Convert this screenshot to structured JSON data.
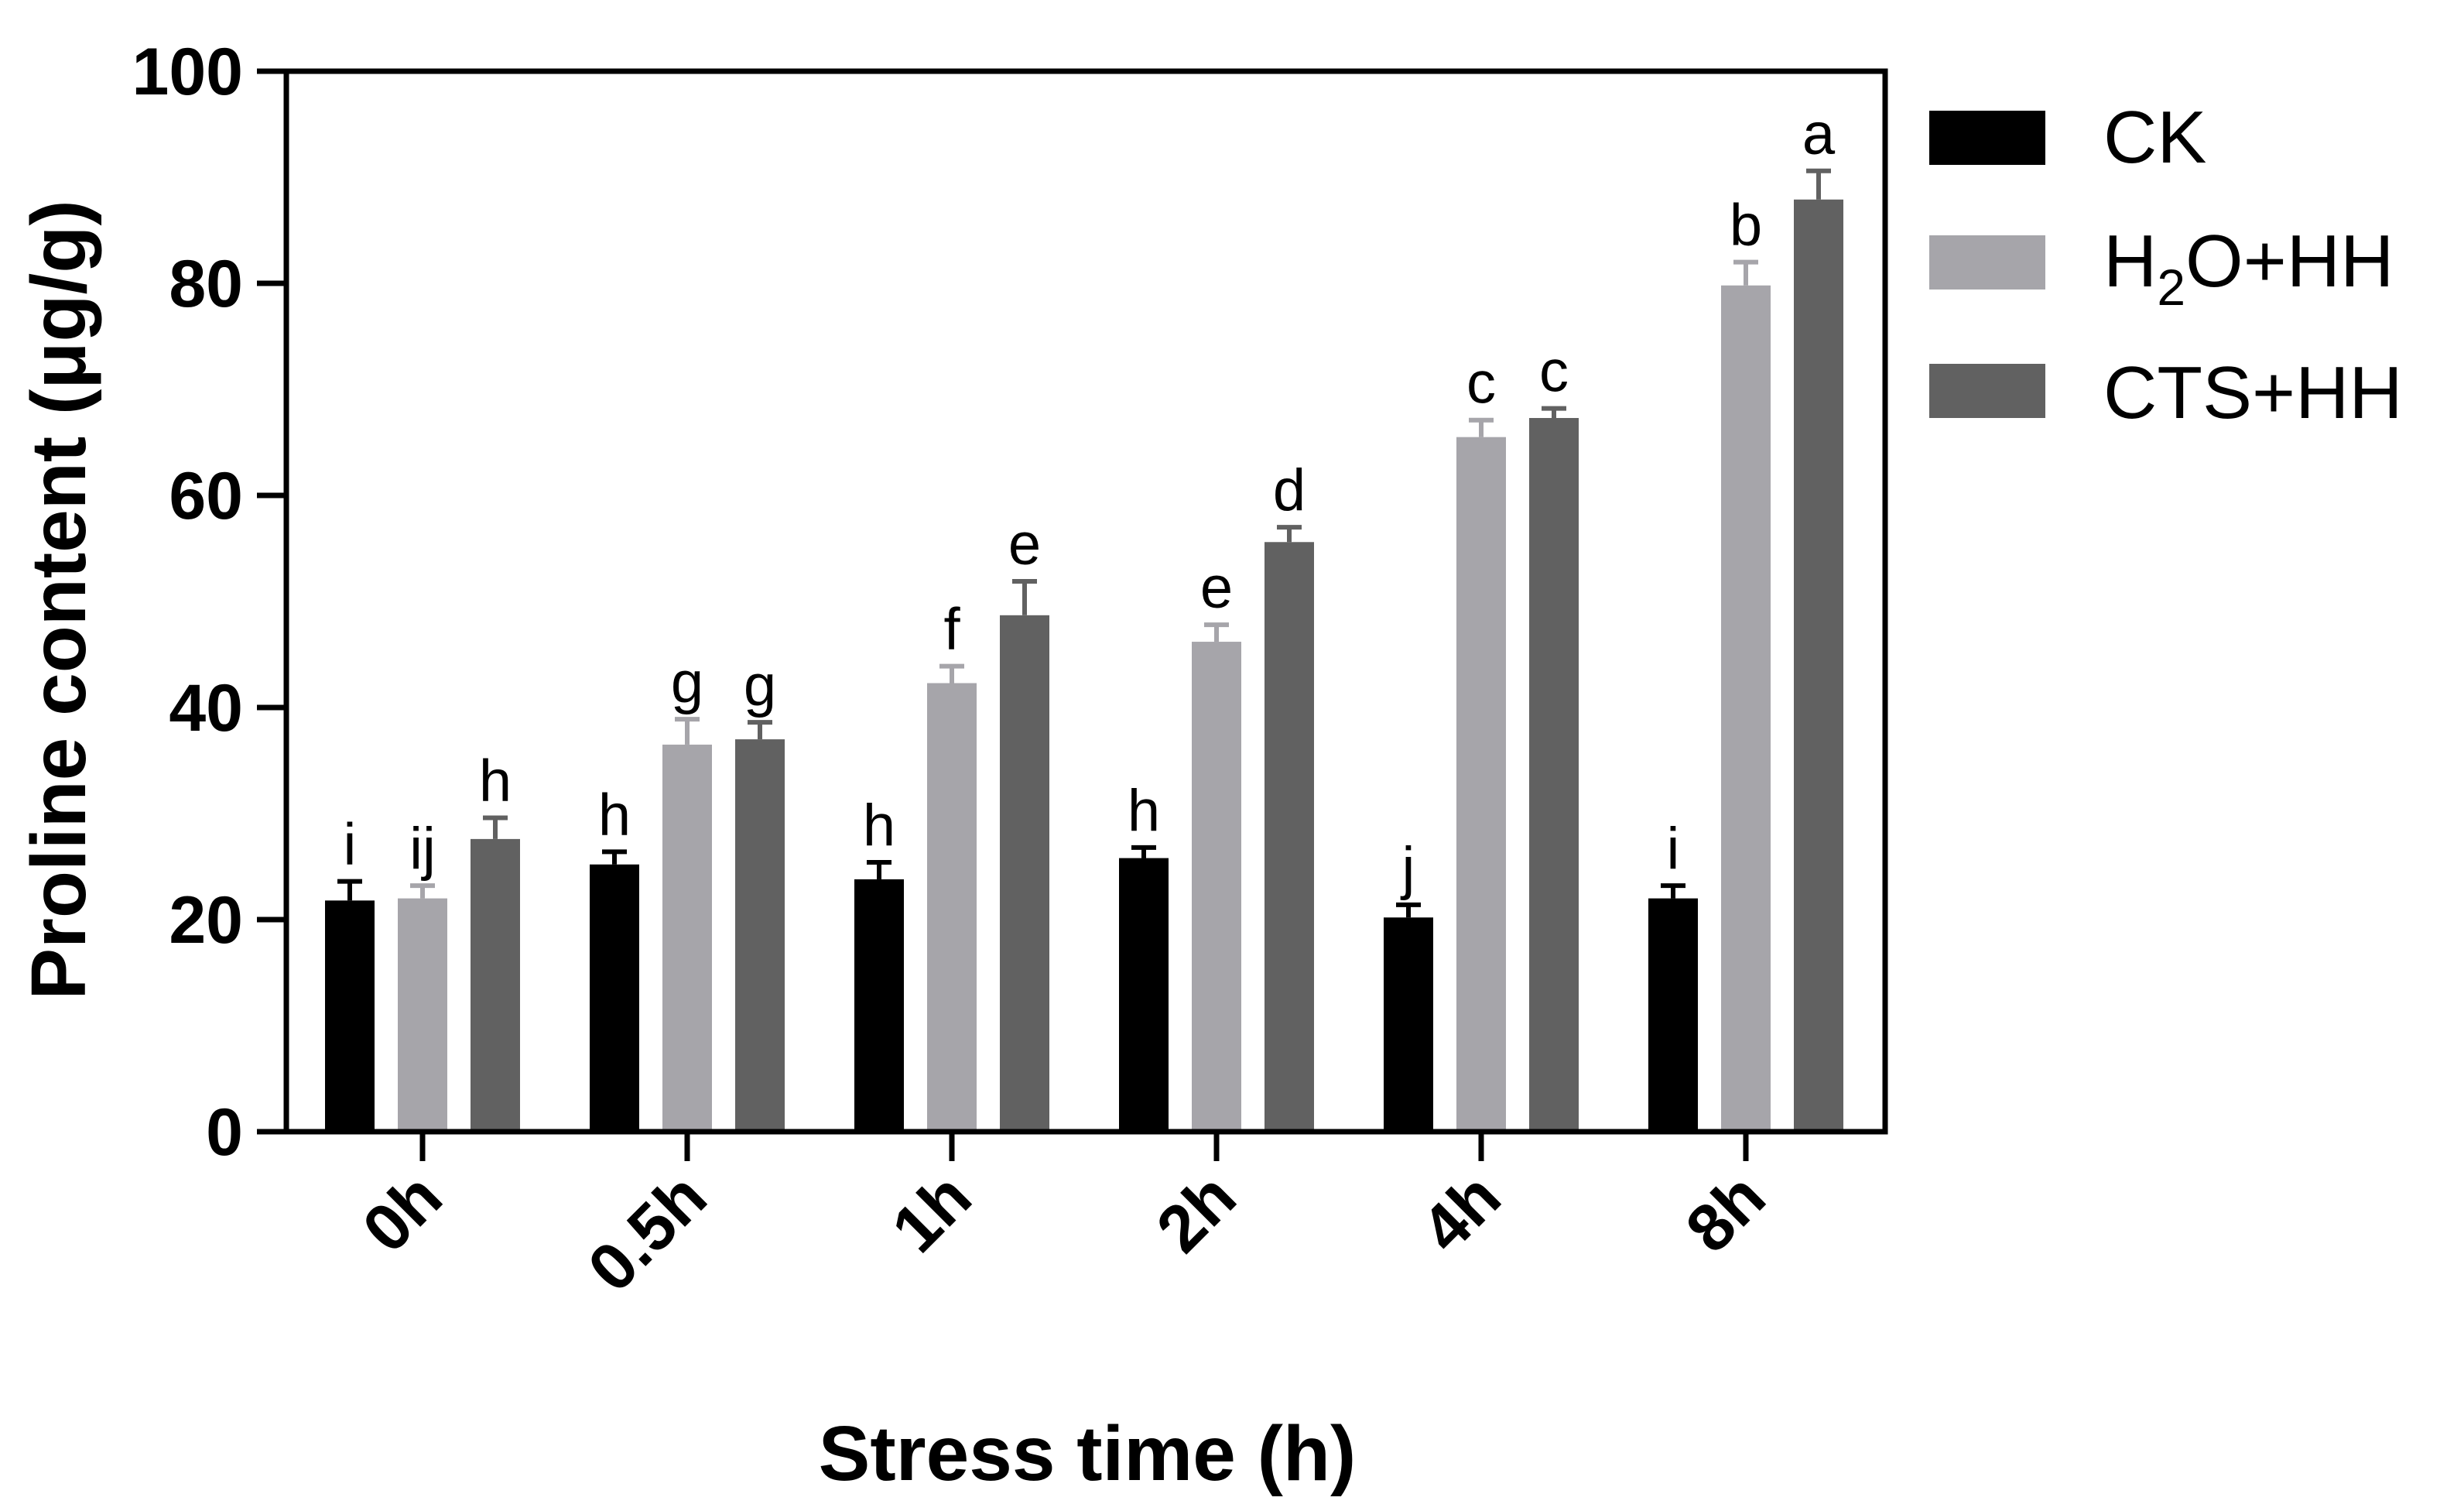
{
  "chart_data": {
    "type": "bar",
    "title": "",
    "xlabel": "Stress time (h)",
    "ylabel": "Proline content (μg/g)",
    "ylim": [
      0,
      100
    ],
    "yticks": [
      "0",
      "20",
      "40",
      "60",
      "80",
      "100"
    ],
    "categories": [
      "0h",
      "0.5h",
      "1h",
      "2h",
      "4h",
      "8h"
    ],
    "series": [
      {
        "name": "CK",
        "color": "#000000",
        "values": [
          21.8,
          25.2,
          23.8,
          25.8,
          20.2,
          22.0
        ],
        "errors": [
          1.8,
          1.2,
          1.6,
          1.0,
          1.2,
          1.2
        ],
        "letters": [
          "i",
          "h",
          "h",
          "h",
          "j",
          "i"
        ]
      },
      {
        "name": "H2O+HH",
        "color": "#a6a5aa",
        "values": [
          22.0,
          36.5,
          42.3,
          46.2,
          65.5,
          79.8
        ],
        "errors": [
          1.2,
          2.4,
          1.6,
          1.6,
          1.6,
          2.2
        ],
        "letters": [
          "ij",
          "g",
          "f",
          "e",
          "c",
          "b"
        ]
      },
      {
        "name": "CTS+HH",
        "color": "#616161",
        "values": [
          27.6,
          37.0,
          48.7,
          55.6,
          67.3,
          87.9
        ],
        "errors": [
          2.0,
          1.6,
          3.2,
          1.4,
          0.9,
          2.7
        ],
        "letters": [
          "h",
          "g",
          "e",
          "d",
          "c",
          "a"
        ]
      }
    ],
    "legend": [
      {
        "label": "CK",
        "color": "#000000"
      },
      {
        "label_main": "H",
        "label_sub": "2",
        "label_rest": "O+HH",
        "color": "#a6a5aa"
      },
      {
        "label": "CTS+HH",
        "color": "#616161"
      }
    ],
    "legend_position": "right"
  }
}
